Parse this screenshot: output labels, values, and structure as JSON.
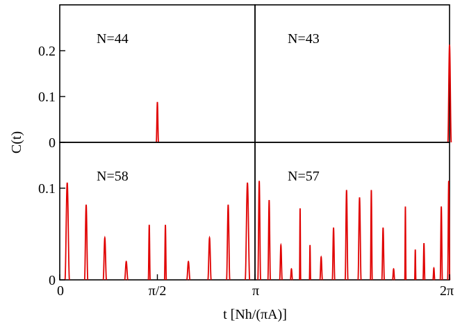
{
  "figure": {
    "ylabel": "C(t)",
    "xlabel": "t [Nh/(πA)]",
    "colors": {
      "curve": "#e00000",
      "axes": "#000000"
    }
  },
  "chart_data": [
    {
      "type": "line",
      "panel": "top-left",
      "title": "N=44",
      "xlim": [
        0,
        3.14159
      ],
      "ylim": [
        0,
        0.3
      ],
      "yticks": [
        0,
        0.1,
        0.2
      ],
      "ytick_labels": [
        "0",
        "0.1",
        "0.2"
      ],
      "xticks": [],
      "xtick_labels": [],
      "series": [
        {
          "peaks": [
            {
              "t": 1.5708,
              "h": 0.088,
              "w": 0.035
            }
          ]
        }
      ]
    },
    {
      "type": "line",
      "panel": "top-right",
      "title": "N=43",
      "xlim": [
        0,
        3.14159
      ],
      "ylim": [
        0,
        0.3
      ],
      "yticks": [],
      "ytick_labels": [],
      "xticks": [],
      "xtick_labels": [],
      "series": [
        {
          "peaks": [
            {
              "t": 3.1416,
              "h": 0.213,
              "w": 0.055
            }
          ]
        }
      ]
    },
    {
      "type": "line",
      "panel": "bottom-left",
      "title": "N=58",
      "xlim": [
        0,
        3.14159
      ],
      "ylim": [
        0,
        0.15
      ],
      "yticks": [
        0,
        0.1
      ],
      "ytick_labels": [
        "0",
        "0.1"
      ],
      "xticks": [
        0,
        1.5708
      ],
      "xtick_labels": [
        "0",
        "π/2"
      ],
      "series": [
        {
          "peaks": [
            {
              "t": 0.12,
              "h": 0.106,
              "w": 0.072
            },
            {
              "t": 0.425,
              "h": 0.082,
              "w": 0.052
            },
            {
              "t": 0.725,
              "h": 0.046,
              "w": 0.052
            },
            {
              "t": 1.07,
              "h": 0.02,
              "w": 0.052
            },
            {
              "t": 1.44,
              "h": 0.06,
              "w": 0.03
            },
            {
              "t": 1.7,
              "h": 0.06,
              "w": 0.03
            },
            {
              "t": 2.07,
              "h": 0.02,
              "w": 0.052
            },
            {
              "t": 2.41,
              "h": 0.046,
              "w": 0.052
            },
            {
              "t": 2.71,
              "h": 0.082,
              "w": 0.052
            },
            {
              "t": 3.02,
              "h": 0.106,
              "w": 0.072
            }
          ]
        }
      ]
    },
    {
      "type": "line",
      "panel": "bottom-right",
      "title": "N=57",
      "xlim": [
        3.14159,
        6.28319
      ],
      "ylim": [
        0,
        0.15
      ],
      "yticks": [],
      "ytick_labels": [],
      "xticks": [
        3.14159,
        6.28319
      ],
      "xtick_labels": [
        "π",
        "2π"
      ],
      "series": [
        {
          "peaks": [
            {
              "t": 3.21,
              "h": 0.108,
              "w": 0.045
            },
            {
              "t": 3.37,
              "h": 0.087,
              "w": 0.04
            },
            {
              "t": 3.56,
              "h": 0.038,
              "w": 0.04
            },
            {
              "t": 3.73,
              "h": 0.012,
              "w": 0.035
            },
            {
              "t": 3.87,
              "h": 0.078,
              "w": 0.02
            },
            {
              "t": 4.03,
              "h": 0.038,
              "w": 0.02
            },
            {
              "t": 4.21,
              "h": 0.025,
              "w": 0.04
            },
            {
              "t": 4.41,
              "h": 0.057,
              "w": 0.04
            },
            {
              "t": 4.62,
              "h": 0.098,
              "w": 0.045
            },
            {
              "t": 4.83,
              "h": 0.09,
              "w": 0.05
            },
            {
              "t": 5.02,
              "h": 0.098,
              "w": 0.03
            },
            {
              "t": 5.21,
              "h": 0.057,
              "w": 0.04
            },
            {
              "t": 5.38,
              "h": 0.012,
              "w": 0.035
            },
            {
              "t": 5.57,
              "h": 0.08,
              "w": 0.02
            },
            {
              "t": 5.73,
              "h": 0.033,
              "w": 0.02
            },
            {
              "t": 5.87,
              "h": 0.04,
              "w": 0.03
            },
            {
              "t": 6.03,
              "h": 0.013,
              "w": 0.03
            },
            {
              "t": 6.15,
              "h": 0.08,
              "w": 0.035
            },
            {
              "t": 6.27,
              "h": 0.108,
              "w": 0.035
            }
          ]
        }
      ]
    }
  ]
}
